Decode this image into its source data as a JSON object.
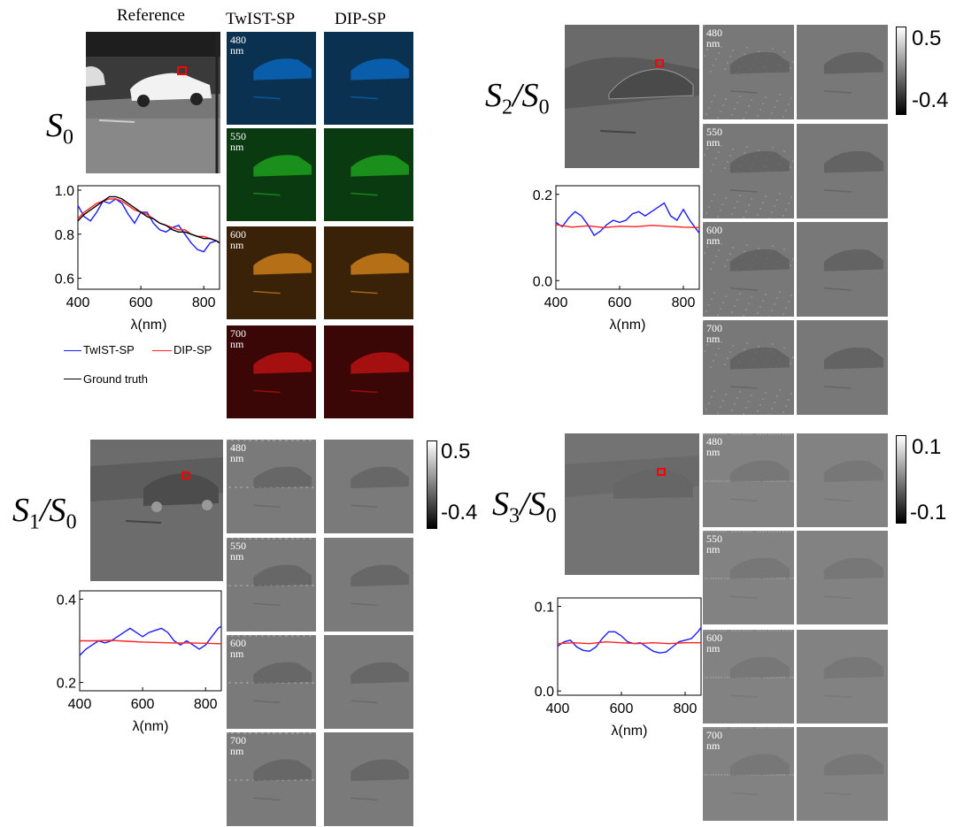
{
  "col_headers": {
    "reference": "Reference",
    "twist": "TwIST-SP",
    "dip": "DIP-SP"
  },
  "wavelength_tags": [
    "480 nm",
    "550 nm",
    "600 nm",
    "700 nm"
  ],
  "panels": {
    "s0": {
      "label_main": "S",
      "label_sub": "0",
      "label_den": "",
      "label_den_sub": ""
    },
    "s1": {
      "label_main": "S",
      "label_sub": "1",
      "label_den": "/S",
      "label_den_sub": "0",
      "cbar_max": "0.5",
      "cbar_min": "-0.4"
    },
    "s2": {
      "label_main": "S",
      "label_sub": "2",
      "label_den": "/S",
      "label_den_sub": "0",
      "cbar_max": "0.5",
      "cbar_min": "-0.4"
    },
    "s3": {
      "label_main": "S",
      "label_sub": "3",
      "label_den": "/S",
      "label_den_sub": "0",
      "cbar_max": "0.1",
      "cbar_min": "-0.1"
    }
  },
  "legend": {
    "twist": "TwIST-SP",
    "dip": "DIP-SP",
    "gt": "Ground truth"
  },
  "colors": {
    "twist": "#1a1aff",
    "dip": "#ff2020",
    "gt": "#000000",
    "roi": "#ff0000",
    "band480": "#0a6fd0",
    "band550": "#22b422",
    "band600": "#e8901e",
    "band700": "#d21414"
  },
  "chart_data": [
    {
      "id": "s0",
      "type": "line",
      "xlabel": "λ(nm)",
      "ylabel": "",
      "xlim": [
        400,
        850
      ],
      "ylim": [
        0.55,
        1.02
      ],
      "xticks": [
        "400",
        "600",
        "800"
      ],
      "yticks": [
        "0.6",
        "0.8",
        "1.0"
      ],
      "series": [
        {
          "name": "TwIST-SP",
          "x": [
            400,
            420,
            440,
            460,
            480,
            500,
            520,
            540,
            560,
            580,
            600,
            620,
            640,
            660,
            680,
            700,
            720,
            740,
            760,
            780,
            800,
            820,
            840,
            850
          ],
          "y": [
            0.93,
            0.88,
            0.86,
            0.9,
            0.95,
            0.94,
            0.96,
            0.94,
            0.89,
            0.85,
            0.9,
            0.9,
            0.85,
            0.82,
            0.81,
            0.83,
            0.84,
            0.8,
            0.76,
            0.73,
            0.72,
            0.76,
            0.77,
            0.76
          ]
        },
        {
          "name": "DIP-SP",
          "x": [
            400,
            420,
            440,
            460,
            480,
            500,
            520,
            540,
            560,
            580,
            600,
            620,
            640,
            660,
            680,
            700,
            720,
            740,
            760,
            780,
            800,
            820,
            840,
            850
          ],
          "y": [
            0.87,
            0.9,
            0.92,
            0.94,
            0.95,
            0.96,
            0.96,
            0.95,
            0.93,
            0.91,
            0.9,
            0.89,
            0.87,
            0.85,
            0.84,
            0.83,
            0.82,
            0.82,
            0.8,
            0.79,
            0.79,
            0.78,
            0.77,
            0.76
          ]
        },
        {
          "name": "Ground truth",
          "x": [
            400,
            420,
            440,
            460,
            480,
            500,
            520,
            540,
            560,
            580,
            600,
            620,
            640,
            660,
            680,
            700,
            720,
            740,
            760,
            780,
            800,
            820,
            840,
            850
          ],
          "y": [
            0.86,
            0.89,
            0.91,
            0.93,
            0.95,
            0.97,
            0.97,
            0.96,
            0.94,
            0.92,
            0.9,
            0.88,
            0.87,
            0.85,
            0.84,
            0.82,
            0.81,
            0.81,
            0.8,
            0.79,
            0.78,
            0.78,
            0.77,
            0.76
          ]
        }
      ]
    },
    {
      "id": "s1",
      "type": "line",
      "xlabel": "λ(nm)",
      "ylabel": "",
      "xlim": [
        400,
        850
      ],
      "ylim": [
        0.18,
        0.42
      ],
      "xticks": [
        "400",
        "600",
        "800"
      ],
      "yticks": [
        "0.2",
        "0.4"
      ],
      "series": [
        {
          "name": "TwIST-SP",
          "x": [
            400,
            420,
            440,
            460,
            480,
            500,
            520,
            540,
            560,
            580,
            600,
            620,
            640,
            660,
            680,
            700,
            720,
            740,
            760,
            780,
            800,
            820,
            840,
            850
          ],
          "y": [
            0.265,
            0.28,
            0.29,
            0.3,
            0.295,
            0.3,
            0.31,
            0.32,
            0.33,
            0.32,
            0.31,
            0.32,
            0.325,
            0.33,
            0.32,
            0.3,
            0.29,
            0.3,
            0.29,
            0.28,
            0.29,
            0.31,
            0.33,
            0.335
          ]
        },
        {
          "name": "DIP-SP",
          "x": [
            400,
            450,
            500,
            550,
            600,
            650,
            700,
            750,
            800,
            850
          ],
          "y": [
            0.3,
            0.3,
            0.301,
            0.299,
            0.297,
            0.296,
            0.295,
            0.295,
            0.294,
            0.293
          ]
        }
      ]
    },
    {
      "id": "s2",
      "type": "line",
      "xlabel": "λ(nm)",
      "ylabel": "",
      "xlim": [
        400,
        850
      ],
      "ylim": [
        -0.02,
        0.22
      ],
      "xticks": [
        "400",
        "600",
        "800"
      ],
      "yticks": [
        "0.0",
        "0.2"
      ],
      "series": [
        {
          "name": "TwIST-SP",
          "x": [
            400,
            420,
            440,
            460,
            480,
            500,
            520,
            540,
            560,
            580,
            600,
            620,
            640,
            660,
            680,
            700,
            720,
            740,
            760,
            780,
            800,
            820,
            840,
            850
          ],
          "y": [
            0.135,
            0.125,
            0.145,
            0.16,
            0.15,
            0.13,
            0.105,
            0.115,
            0.13,
            0.14,
            0.135,
            0.14,
            0.155,
            0.16,
            0.15,
            0.16,
            0.17,
            0.18,
            0.15,
            0.14,
            0.165,
            0.14,
            0.12,
            0.11
          ]
        },
        {
          "name": "DIP-SP",
          "x": [
            400,
            450,
            500,
            550,
            600,
            650,
            700,
            750,
            800,
            850
          ],
          "y": [
            0.13,
            0.124,
            0.127,
            0.123,
            0.126,
            0.125,
            0.128,
            0.126,
            0.124,
            0.123
          ]
        }
      ]
    },
    {
      "id": "s3",
      "type": "line",
      "xlabel": "λ(nm)",
      "ylabel": "",
      "xlim": [
        400,
        850
      ],
      "ylim": [
        -0.005,
        0.11
      ],
      "xticks": [
        "400",
        "600",
        "800"
      ],
      "yticks": [
        "0.0",
        "0.1"
      ],
      "series": [
        {
          "name": "TwIST-SP",
          "x": [
            400,
            420,
            440,
            460,
            480,
            500,
            520,
            540,
            560,
            580,
            600,
            620,
            640,
            660,
            680,
            700,
            720,
            740,
            760,
            780,
            800,
            820,
            840,
            850
          ],
          "y": [
            0.053,
            0.058,
            0.06,
            0.052,
            0.048,
            0.047,
            0.052,
            0.062,
            0.07,
            0.07,
            0.065,
            0.058,
            0.056,
            0.057,
            0.052,
            0.047,
            0.045,
            0.046,
            0.052,
            0.058,
            0.06,
            0.062,
            0.07,
            0.075
          ]
        },
        {
          "name": "DIP-SP",
          "x": [
            400,
            450,
            500,
            550,
            600,
            650,
            700,
            750,
            800,
            850
          ],
          "y": [
            0.056,
            0.057,
            0.056,
            0.058,
            0.057,
            0.056,
            0.057,
            0.056,
            0.057,
            0.057
          ]
        }
      ]
    }
  ]
}
